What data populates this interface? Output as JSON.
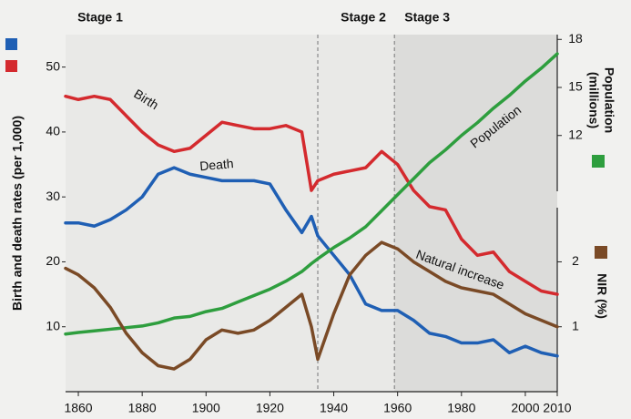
{
  "chart_data": {
    "type": "line",
    "y_label": "Birth and death rates (per 1,000)",
    "y2_label": [
      "Population",
      "(millions)"
    ],
    "y3_label": "NIR (%)",
    "stages": [
      "Stage 1",
      "Stage 2",
      "Stage 3"
    ],
    "stage_lines": [
      1935,
      1959
    ],
    "x": [
      1856,
      1860,
      1865,
      1870,
      1875,
      1880,
      1885,
      1890,
      1895,
      1900,
      1905,
      1910,
      1915,
      1920,
      1925,
      1930,
      1933,
      1935,
      1940,
      1945,
      1950,
      1955,
      1960,
      1965,
      1970,
      1975,
      1980,
      1985,
      1990,
      1995,
      2000,
      2005,
      2010
    ],
    "xlim": [
      1856,
      2010
    ],
    "xticks": [
      1860,
      1880,
      1900,
      1920,
      1940,
      1960,
      1980,
      2000,
      2010
    ],
    "ylim": [
      0,
      55
    ],
    "yticks": [
      10,
      20,
      30,
      40,
      50
    ],
    "y2lim": [
      -4,
      18.3
    ],
    "y2ticks": [
      12,
      15,
      18
    ],
    "y3lim": [
      0,
      5.5
    ],
    "y3ticks": [
      1,
      2
    ],
    "series": [
      {
        "name": "Birth",
        "color": "#d42a2e",
        "axis": "y",
        "values": [
          45.5,
          45,
          45.5,
          45,
          42.5,
          40,
          38,
          37,
          37.5,
          39.5,
          41.5,
          41,
          40.5,
          40.5,
          41,
          40,
          31,
          32.5,
          33.5,
          34,
          34.5,
          37,
          35,
          31,
          28.5,
          28,
          23.5,
          21,
          21.5,
          18.5,
          17,
          15.5,
          15
        ]
      },
      {
        "name": "Death",
        "color": "#1f5fb4",
        "axis": "y",
        "values": [
          26,
          26,
          25.5,
          26.5,
          28,
          30,
          33.5,
          34.5,
          33.5,
          33,
          32.5,
          32.5,
          32.5,
          32,
          28,
          24.5,
          27,
          24,
          21,
          18,
          13.5,
          12.5,
          12.5,
          11,
          9,
          8.5,
          7.5,
          7.5,
          8,
          6,
          7,
          6,
          5.5
        ]
      },
      {
        "name": "Population",
        "color": "#2e9e3e",
        "axis": "y2",
        "values": [
          -0.4,
          -0.3,
          -0.2,
          -0.1,
          0,
          0.1,
          0.3,
          0.6,
          0.7,
          1,
          1.2,
          1.6,
          2,
          2.4,
          2.9,
          3.5,
          4,
          4.3,
          5,
          5.6,
          6.3,
          7.3,
          8.3,
          9.3,
          10.3,
          11.1,
          12,
          12.8,
          13.7,
          14.5,
          15.4,
          16.2,
          17.1
        ]
      },
      {
        "name": "Natural increase",
        "color": "#7a4a26",
        "axis": "y3",
        "values": [
          1.9,
          1.8,
          1.6,
          1.3,
          0.9,
          0.6,
          0.4,
          0.35,
          0.5,
          0.8,
          0.95,
          0.9,
          0.95,
          1.1,
          1.3,
          1.5,
          1,
          0.5,
          1.2,
          1.8,
          2.1,
          2.3,
          2.2,
          2,
          1.85,
          1.7,
          1.6,
          1.55,
          1.5,
          1.35,
          1.2,
          1.1,
          1
        ]
      }
    ]
  }
}
